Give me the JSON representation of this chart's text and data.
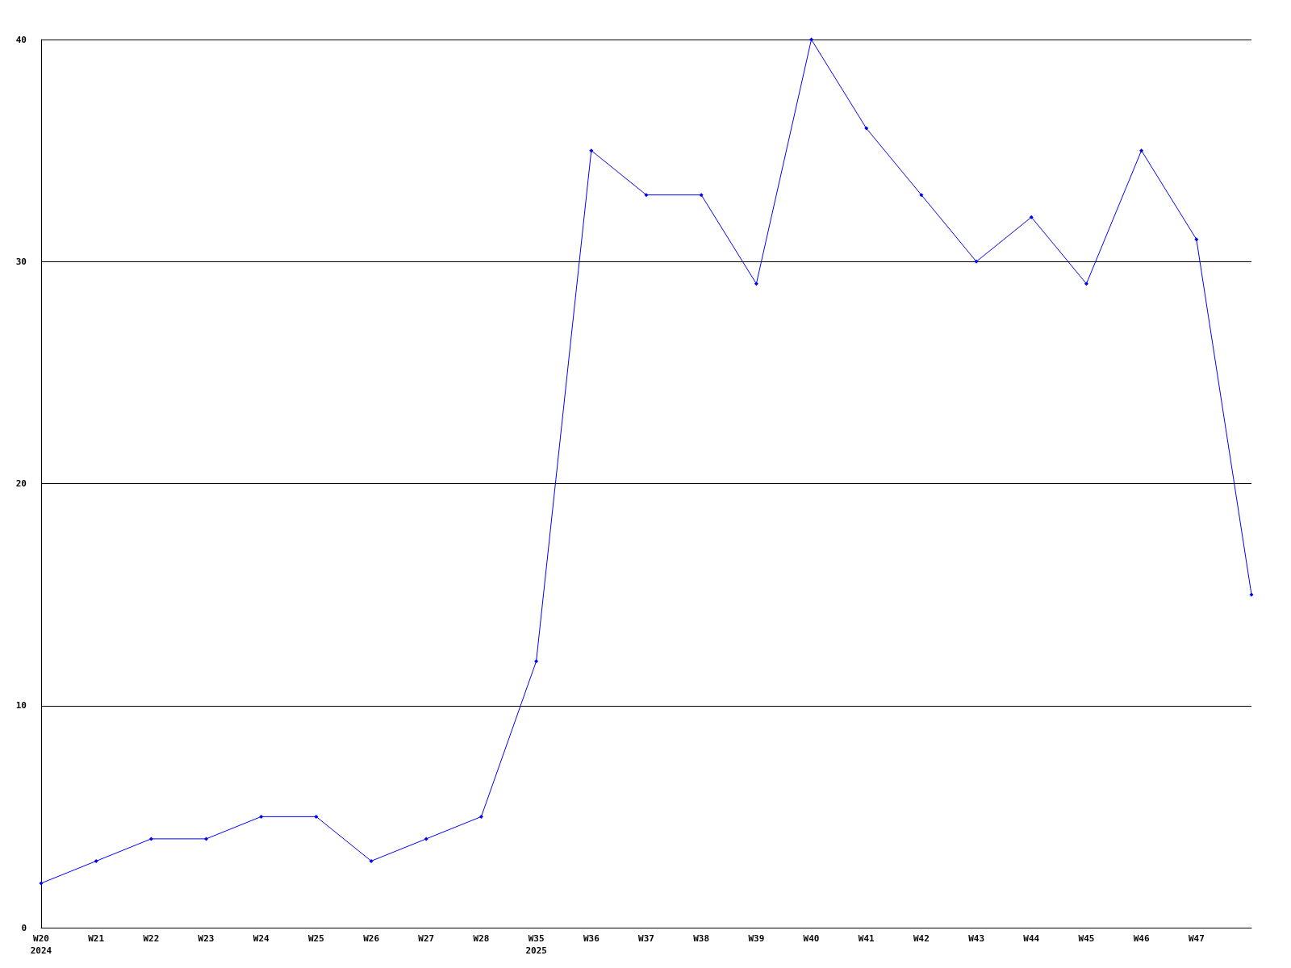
{
  "chart_data": {
    "type": "line",
    "categories": [
      "W20\n2024",
      "W21",
      "W22",
      "W23",
      "W24",
      "W25",
      "W26",
      "W27",
      "W28",
      "W35\n2025",
      "W36",
      "W37",
      "W38",
      "W39",
      "W40",
      "W41",
      "W42",
      "W43",
      "W44",
      "W45",
      "W46",
      "W47",
      null
    ],
    "series": [
      {
        "color": "#0000ff",
        "values": [
          2,
          3,
          4,
          4,
          5,
          5,
          3,
          4,
          5,
          12,
          35,
          33,
          33,
          29,
          40,
          36,
          33,
          30,
          32,
          29,
          35,
          31,
          15
        ]
      }
    ],
    "ylim": [
      0,
      40
    ],
    "yticks": [
      0,
      10,
      20,
      30,
      40
    ],
    "grid": "y",
    "marker": "diamond",
    "line_style": "solid"
  }
}
